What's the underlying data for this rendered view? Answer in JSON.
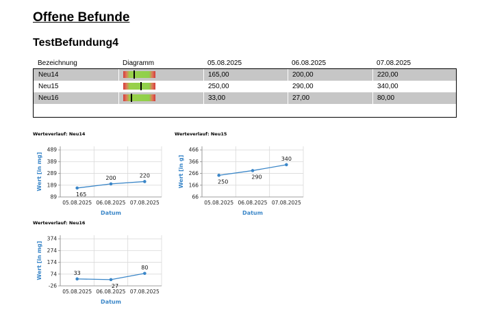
{
  "page": {
    "title": "Offene Befunde",
    "subtitle": "TestBefundung4"
  },
  "table": {
    "headers": [
      "Bezeichnung",
      "Diagramm",
      "05.08.2025",
      "06.08.2025",
      "07.08.2025"
    ],
    "rows": [
      {
        "name": "Neu14",
        "values": [
          "165,00",
          "200,00",
          "220,00"
        ],
        "indicator": 0.33
      },
      {
        "name": "Neu15",
        "values": [
          "250,00",
          "290,00",
          "340,00"
        ],
        "indicator": 0.55
      },
      {
        "name": "Neu16",
        "values": [
          "33,00",
          "27,00",
          "80,00"
        ],
        "indicator": 0.25
      }
    ]
  },
  "chart_data": [
    {
      "type": "line",
      "title": "Werteverlauf: Neu14",
      "xlabel": "Datum",
      "ylabel": "Wert [in mg]",
      "categories": [
        "05.08.2025",
        "06.08.2025",
        "07.08.2025"
      ],
      "series": [
        {
          "values": [
            165,
            200,
            220
          ]
        }
      ],
      "yticks": [
        89,
        189,
        289,
        389,
        489
      ],
      "ylim": [
        89,
        519
      ],
      "labels": [
        "165",
        "200",
        "220"
      ],
      "label_pos": [
        "below",
        "above",
        "above"
      ],
      "grid": true,
      "color": "#3a86c8"
    },
    {
      "type": "line",
      "title": "Werteverlauf: Neu15",
      "xlabel": "Datum",
      "ylabel": "Wert [in g]",
      "categories": [
        "05.08.2025",
        "06.08.2025",
        "07.08.2025"
      ],
      "series": [
        {
          "values": [
            250,
            290,
            340
          ]
        }
      ],
      "yticks": [
        66,
        166,
        266,
        366,
        466
      ],
      "ylim": [
        66,
        496
      ],
      "labels": [
        "250",
        "290",
        "340"
      ],
      "label_pos": [
        "below",
        "below",
        "above"
      ],
      "grid": true,
      "color": "#3a86c8"
    },
    {
      "type": "line",
      "title": "Werteverlauf: Neu16",
      "xlabel": "Datum",
      "ylabel": "Wert [in mg]",
      "categories": [
        "05.08.2025",
        "06.08.2025",
        "07.08.2025"
      ],
      "series": [
        {
          "values": [
            33,
            27,
            80
          ]
        }
      ],
      "yticks": [
        -26,
        74,
        174,
        274,
        374
      ],
      "ylim": [
        -26,
        404
      ],
      "labels": [
        "33",
        "27",
        "80"
      ],
      "label_pos": [
        "above",
        "below",
        "above"
      ],
      "grid": true,
      "color": "#3a86c8"
    }
  ]
}
